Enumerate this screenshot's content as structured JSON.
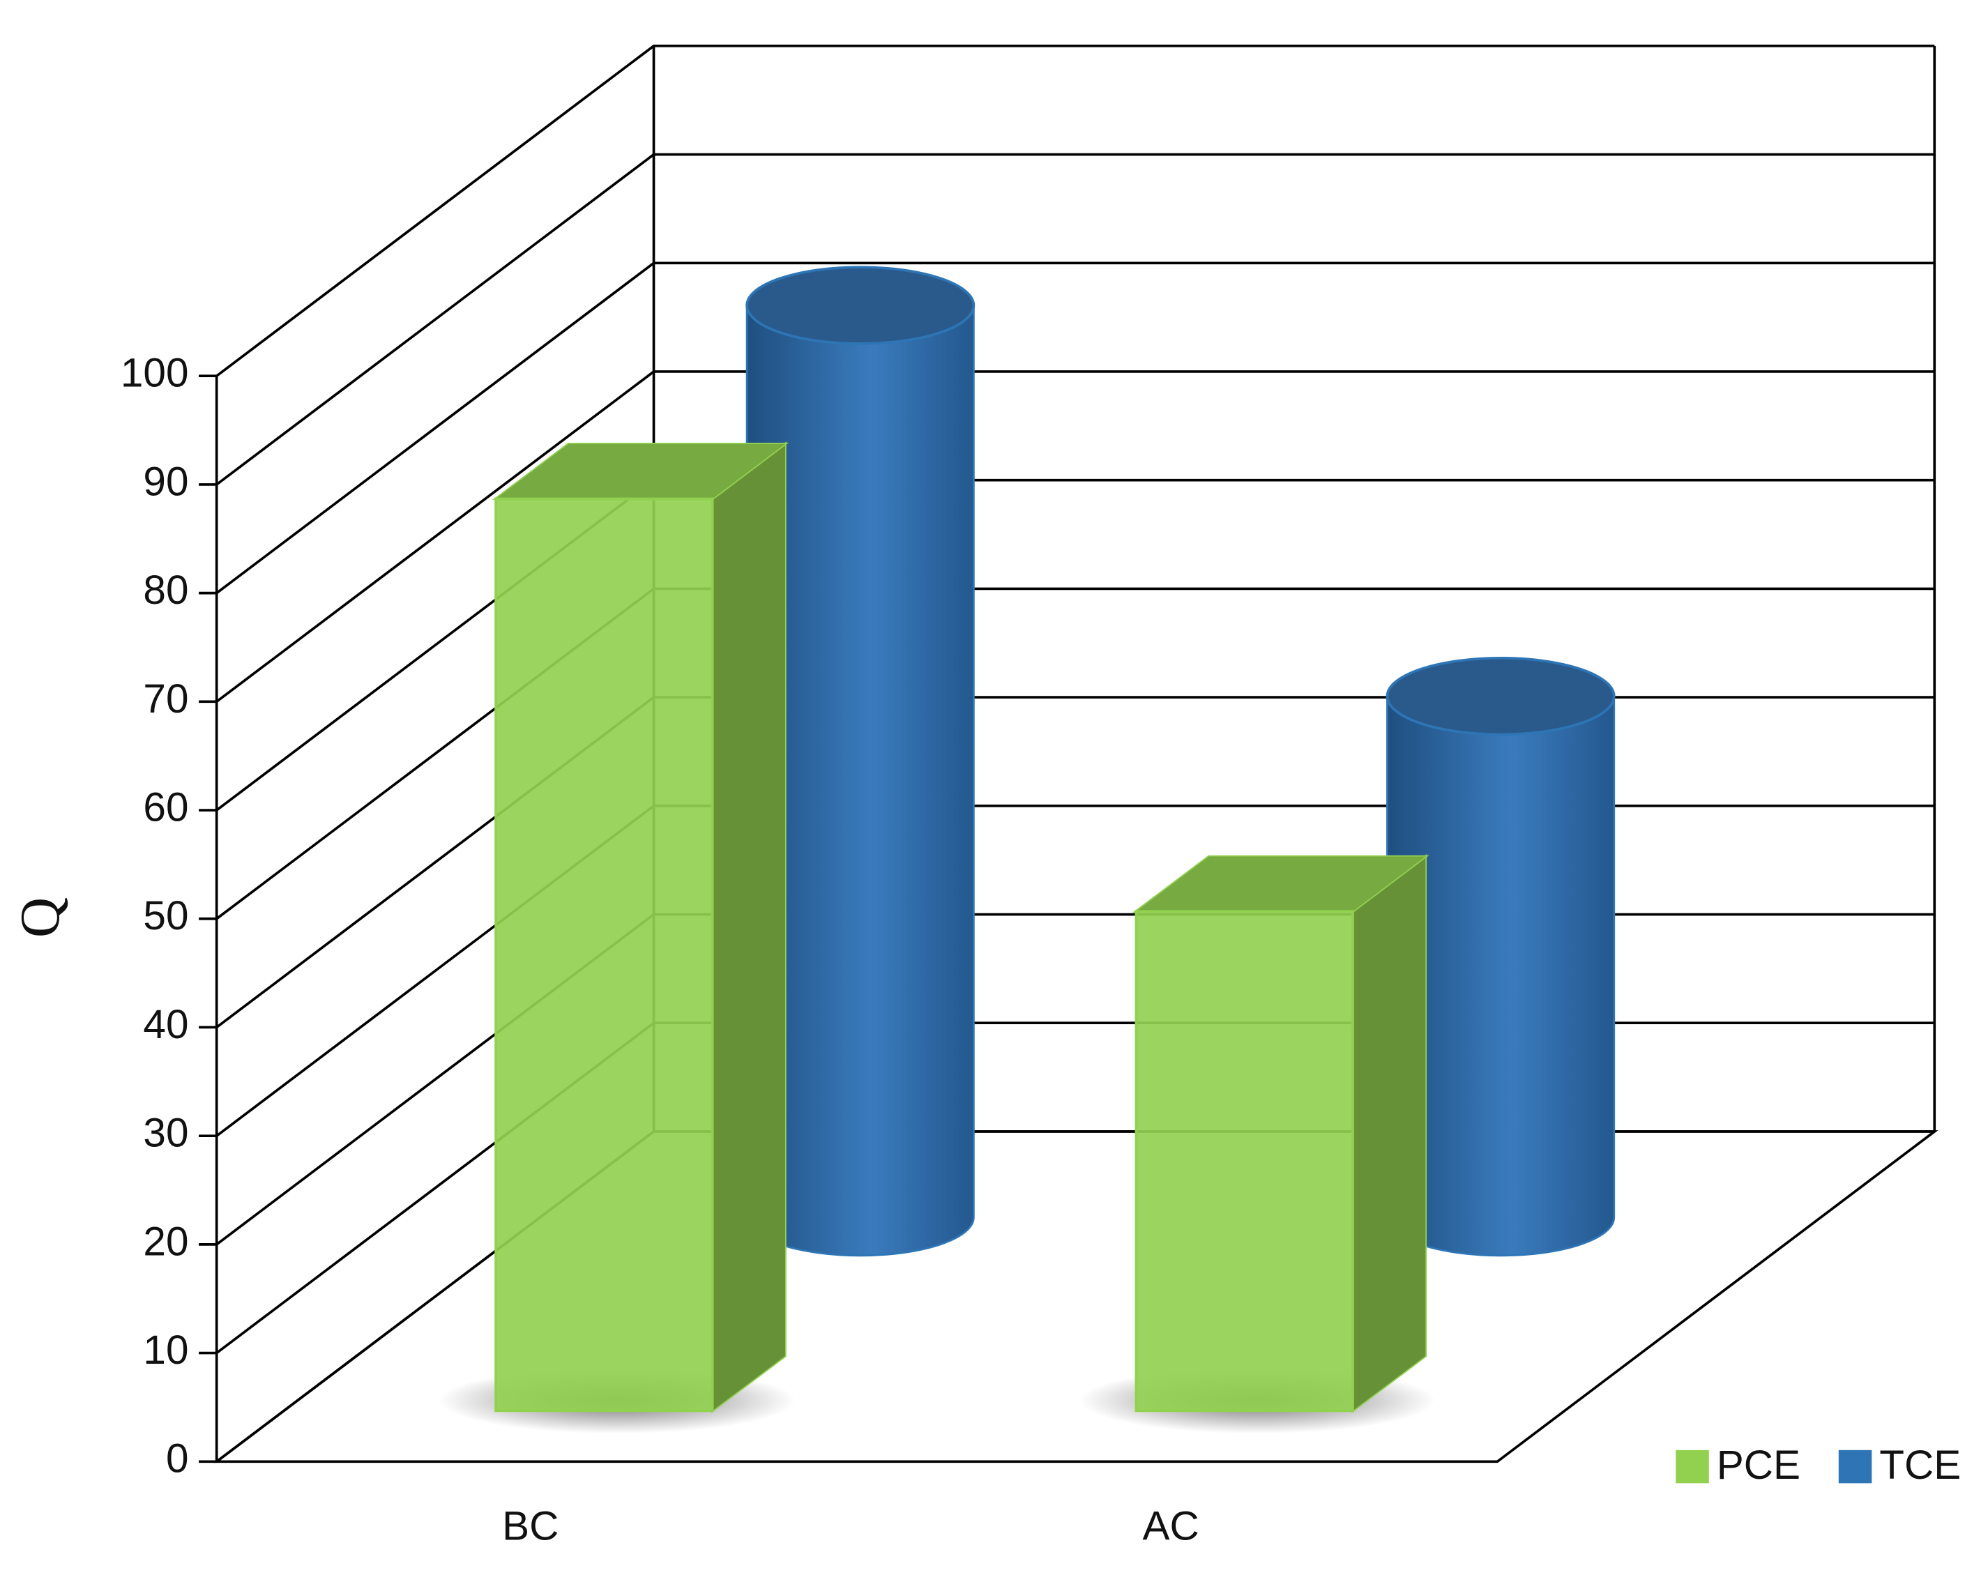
{
  "chart_data": {
    "type": "bar3d",
    "y_label": "Q",
    "categories": [
      "BC",
      "AC"
    ],
    "series": [
      {
        "name": "PCE",
        "color": "#92d050",
        "values": [
          84,
          46
        ]
      },
      {
        "name": "TCE",
        "color": "#2e75b6",
        "values": [
          84,
          48
        ]
      }
    ],
    "ylim": [
      0,
      100
    ],
    "yticks": [
      0,
      10,
      20,
      30,
      40,
      50,
      60,
      70,
      80,
      90,
      100
    ],
    "grid": true,
    "legend": "lower right"
  }
}
